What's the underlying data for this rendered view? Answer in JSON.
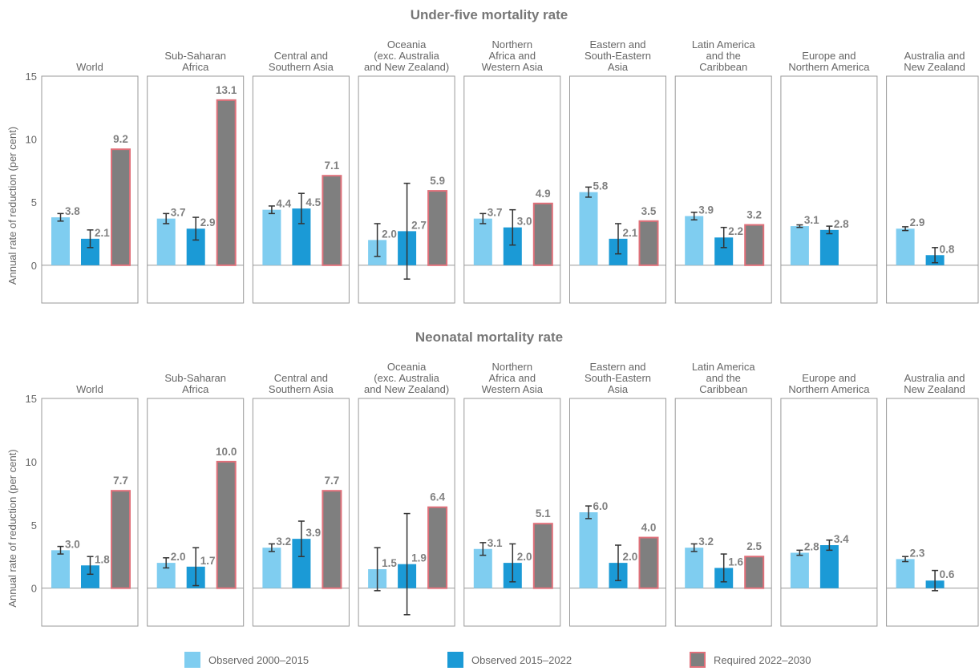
{
  "chart_data": [
    {
      "type": "bar",
      "title": "Under-five mortality rate",
      "ylabel": "Annual rate of reduction (per cent)",
      "categories": [
        [
          "World"
        ],
        [
          "Sub-Saharan",
          "Africa"
        ],
        [
          "Central and",
          "Southern Asia"
        ],
        [
          "Oceania",
          "(exc. Australia",
          "and New Zealand)"
        ],
        [
          "Northern",
          "Africa and",
          "Western Asia"
        ],
        [
          "Eastern and",
          "South-Eastern",
          "Asia"
        ],
        [
          "Latin America",
          "and the",
          "Caribbean"
        ],
        [
          "Europe and",
          "Northern America"
        ],
        [
          "Australia and",
          "New Zealand"
        ]
      ],
      "ylim": [
        -3,
        15
      ],
      "yticks": [
        0,
        5,
        10,
        15
      ],
      "series": [
        {
          "name": "Observed 2000–2015",
          "color": "#7fcdf0",
          "values": [
            3.8,
            3.7,
            4.4,
            2.0,
            3.7,
            5.8,
            3.9,
            3.1,
            2.9
          ],
          "value_labels": [
            "3.8",
            "3.7",
            "4.4",
            "2.0",
            "3.7",
            "5.8",
            "3.9",
            "3.1",
            "2.9"
          ],
          "errors": [
            0.3,
            0.4,
            0.3,
            1.3,
            0.4,
            0.4,
            0.3,
            0.1,
            0.15
          ]
        },
        {
          "name": "Observed 2015–2022",
          "color": "#1b9ad6",
          "values": [
            2.1,
            2.9,
            4.5,
            2.7,
            3.0,
            2.1,
            2.2,
            2.8,
            0.8
          ],
          "value_labels": [
            "2.1",
            "2.9",
            "4.5",
            "2.7",
            "3.0",
            "2.1",
            "2.2",
            "2.8",
            "0.8"
          ],
          "errors": [
            0.7,
            0.9,
            1.2,
            3.8,
            1.4,
            1.2,
            0.8,
            0.3,
            0.6
          ]
        },
        {
          "name": "Required 2022–2030",
          "color": "#7f7f7f",
          "stroke": "#e0707a",
          "values": [
            9.2,
            13.1,
            7.1,
            5.9,
            4.9,
            3.5,
            3.2,
            null,
            null
          ],
          "value_labels": [
            "9.2",
            "13.1",
            "7.1",
            "5.9",
            "4.9",
            "3.5",
            "3.2",
            null,
            null
          ]
        }
      ]
    },
    {
      "type": "bar",
      "title": "Neonatal mortality rate",
      "ylabel": "Annual rate of reduction (per cent)",
      "categories": [
        [
          "World"
        ],
        [
          "Sub-Saharan",
          "Africa"
        ],
        [
          "Central and",
          "Southern Asia"
        ],
        [
          "Oceania",
          "(exc. Australia",
          "and New Zealand)"
        ],
        [
          "Northern",
          "Africa and",
          "Western Asia"
        ],
        [
          "Eastern and",
          "South-Eastern",
          "Asia"
        ],
        [
          "Latin America",
          "and the",
          "Caribbean"
        ],
        [
          "Europe and",
          "Northern America"
        ],
        [
          "Australia and",
          "New Zealand"
        ]
      ],
      "ylim": [
        -3,
        15
      ],
      "yticks": [
        0,
        5,
        10,
        15
      ],
      "series": [
        {
          "color": "#7fcdf0",
          "values": [
            3.0,
            2.0,
            3.2,
            1.5,
            3.1,
            6.0,
            3.2,
            2.8,
            2.3
          ],
          "value_labels": [
            "3.0",
            "2.0",
            "3.2",
            "1.5",
            "3.1",
            "6.0",
            "3.2",
            "2.8",
            "2.3"
          ],
          "errors": [
            0.3,
            0.4,
            0.3,
            1.7,
            0.5,
            0.5,
            0.3,
            0.2,
            0.2
          ]
        },
        {
          "color": "#1b9ad6",
          "values": [
            1.8,
            1.7,
            3.9,
            1.9,
            2.0,
            2.0,
            1.6,
            3.4,
            0.6
          ],
          "value_labels": [
            "1.8",
            "1.7",
            "3.9",
            "1.9",
            "2.0",
            "2.0",
            "1.6",
            "3.4",
            "0.6"
          ],
          "errors": [
            0.7,
            1.5,
            1.4,
            4.0,
            1.5,
            1.4,
            1.1,
            0.4,
            0.8
          ]
        },
        {
          "color": "#7f7f7f",
          "stroke": "#e0707a",
          "values": [
            7.7,
            10.0,
            7.7,
            6.4,
            5.1,
            4.0,
            2.5,
            null,
            null
          ],
          "value_labels": [
            "7.7",
            "10.0",
            "7.7",
            "6.4",
            "5.1",
            "4.0",
            "2.5",
            null,
            null
          ]
        }
      ]
    }
  ]
}
